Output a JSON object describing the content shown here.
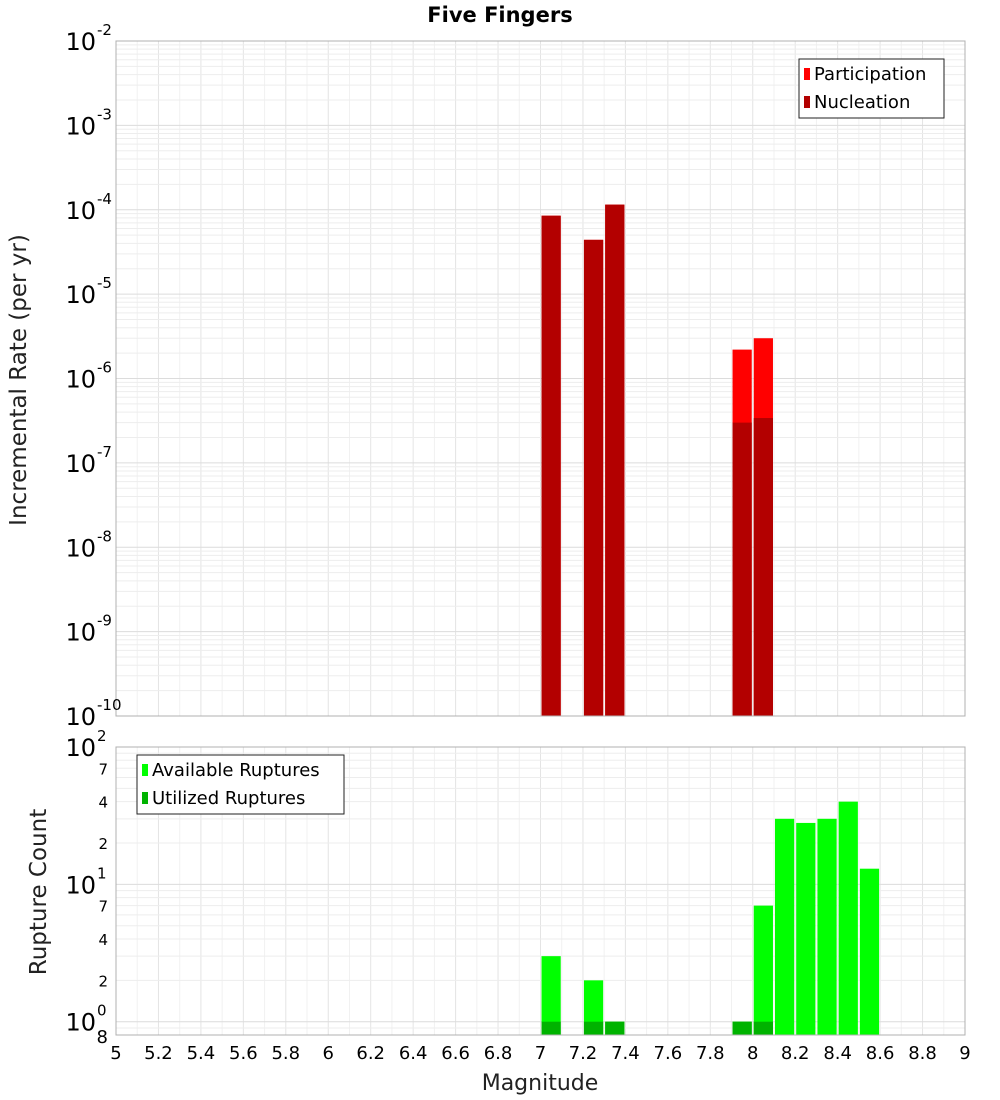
{
  "chart_data": [
    {
      "type": "bar",
      "panel": "top",
      "title": "Five Fingers",
      "ylabel": "Incremental Rate (per yr)",
      "yscale": "log",
      "ylim": [
        1e-10,
        0.01
      ],
      "y_tick_labels": [
        {
          "value": 1e-10,
          "base": "10",
          "exp": "-10"
        },
        {
          "value": 1e-09,
          "base": "10",
          "exp": "-9"
        },
        {
          "value": 1e-08,
          "base": "10",
          "exp": "-8"
        },
        {
          "value": 1e-07,
          "base": "10",
          "exp": "-7"
        },
        {
          "value": 1e-06,
          "base": "10",
          "exp": "-6"
        },
        {
          "value": 1e-05,
          "base": "10",
          "exp": "-5"
        },
        {
          "value": 0.0001,
          "base": "10",
          "exp": "-4"
        },
        {
          "value": 0.001,
          "base": "10",
          "exp": "-3"
        },
        {
          "value": 0.01,
          "base": "10",
          "exp": "-2"
        }
      ],
      "xlim": [
        5,
        9
      ],
      "bar_width": 0.1,
      "legend": "top-right",
      "grid": true,
      "series": [
        {
          "name": "Participation",
          "color": "#ff0000",
          "x": [
            7.05,
            7.25,
            7.35,
            7.95,
            8.05
          ],
          "values": [
            8.5e-05,
            4.4e-05,
            0.000115,
            2.2e-06,
            3e-06
          ]
        },
        {
          "name": "Nucleation",
          "color": "#b30000",
          "x": [
            7.05,
            7.25,
            7.35,
            7.95,
            8.05
          ],
          "values": [
            8.5e-05,
            4.4e-05,
            0.000115,
            3e-07,
            3.4e-07
          ]
        }
      ]
    },
    {
      "type": "bar",
      "panel": "bottom",
      "xlabel": "Magnitude",
      "ylabel": "Rupture Count",
      "yscale": "log",
      "ylim": [
        0.8,
        100
      ],
      "y_tick_labels": [
        {
          "value": 0.8,
          "base": "8",
          "exp": ""
        },
        {
          "value": 1,
          "base": "10",
          "exp": "0"
        },
        {
          "value": 2,
          "base": "2",
          "exp": ""
        },
        {
          "value": 4,
          "base": "4",
          "exp": ""
        },
        {
          "value": 7,
          "base": "7",
          "exp": ""
        },
        {
          "value": 10,
          "base": "10",
          "exp": "1"
        },
        {
          "value": 20,
          "base": "2",
          "exp": ""
        },
        {
          "value": 40,
          "base": "4",
          "exp": ""
        },
        {
          "value": 70,
          "base": "7",
          "exp": ""
        },
        {
          "value": 100,
          "base": "10",
          "exp": "2"
        }
      ],
      "xlim": [
        5,
        9
      ],
      "x_ticks": [
        "5",
        "5.2",
        "5.4",
        "5.6",
        "5.8",
        "6",
        "6.2",
        "6.4",
        "6.6",
        "6.8",
        "7",
        "7.2",
        "7.4",
        "7.6",
        "7.8",
        "8",
        "8.2",
        "8.4",
        "8.6",
        "8.8",
        "9"
      ],
      "bar_width": 0.1,
      "legend": "top-left",
      "grid": true,
      "series": [
        {
          "name": "Available Ruptures",
          "color": "#00ff00",
          "x": [
            7.05,
            7.25,
            7.35,
            7.95,
            8.05,
            8.15,
            8.25,
            8.35,
            8.45,
            8.55
          ],
          "values": [
            3,
            2,
            1,
            1,
            7,
            30,
            28,
            30,
            40,
            13
          ]
        },
        {
          "name": "Utilized Ruptures",
          "color": "#00b300",
          "x": [
            7.05,
            7.25,
            7.35,
            7.95,
            8.05
          ],
          "values": [
            1,
            1,
            1,
            1,
            1
          ]
        }
      ]
    }
  ]
}
